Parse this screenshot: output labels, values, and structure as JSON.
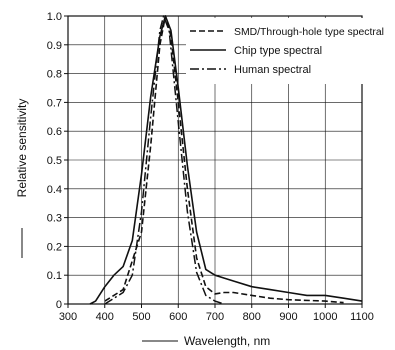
{
  "chart_data": {
    "type": "line",
    "title": "",
    "xlabel": "Wavelength, nm",
    "ylabel": "Relative sensitivity",
    "xlim": [
      300,
      1100
    ],
    "ylim": [
      0,
      1.0
    ],
    "x_ticks": [
      "300",
      "400",
      "500",
      "600",
      "700",
      "800",
      "900",
      "1000",
      "1100"
    ],
    "y_ticks": [
      "0",
      "0.1",
      "0.2",
      "0.3",
      "0.4",
      "0.5",
      "0.6",
      "0.7",
      "0.8",
      "0.9",
      "1.0"
    ],
    "grid": true,
    "legend_position": "top-right",
    "series": [
      {
        "name": "SMD/Through-hole type spectral",
        "dash": "dashed",
        "points": [
          [
            400,
            0.01
          ],
          [
            450,
            0.05
          ],
          [
            500,
            0.25
          ],
          [
            525,
            0.55
          ],
          [
            550,
            0.9
          ],
          [
            565,
            1.0
          ],
          [
            580,
            0.93
          ],
          [
            600,
            0.7
          ],
          [
            625,
            0.4
          ],
          [
            650,
            0.16
          ],
          [
            675,
            0.06
          ],
          [
            700,
            0.035
          ],
          [
            725,
            0.04
          ],
          [
            750,
            0.04
          ],
          [
            800,
            0.03
          ],
          [
            850,
            0.02
          ],
          [
            900,
            0.015
          ],
          [
            1000,
            0.01
          ],
          [
            1050,
            0.005
          ]
        ]
      },
      {
        "name": "Chip type spectral",
        "dash": "solid",
        "points": [
          [
            360,
            0.0
          ],
          [
            375,
            0.01
          ],
          [
            400,
            0.06
          ],
          [
            425,
            0.1
          ],
          [
            450,
            0.13
          ],
          [
            475,
            0.22
          ],
          [
            500,
            0.45
          ],
          [
            525,
            0.72
          ],
          [
            550,
            0.93
          ],
          [
            565,
            1.0
          ],
          [
            580,
            0.95
          ],
          [
            600,
            0.75
          ],
          [
            625,
            0.48
          ],
          [
            650,
            0.25
          ],
          [
            675,
            0.12
          ],
          [
            700,
            0.1
          ],
          [
            725,
            0.09
          ],
          [
            750,
            0.08
          ],
          [
            800,
            0.06
          ],
          [
            850,
            0.05
          ],
          [
            900,
            0.04
          ],
          [
            950,
            0.03
          ],
          [
            1000,
            0.03
          ],
          [
            1050,
            0.02
          ],
          [
            1100,
            0.01
          ]
        ]
      },
      {
        "name": "Human spectral",
        "dash": "dashdot",
        "points": [
          [
            400,
            0.0
          ],
          [
            450,
            0.04
          ],
          [
            475,
            0.1
          ],
          [
            500,
            0.32
          ],
          [
            525,
            0.65
          ],
          [
            550,
            0.95
          ],
          [
            560,
            1.0
          ],
          [
            575,
            0.95
          ],
          [
            600,
            0.63
          ],
          [
            625,
            0.32
          ],
          [
            650,
            0.11
          ],
          [
            675,
            0.03
          ],
          [
            700,
            0.01
          ],
          [
            725,
            0.0
          ]
        ]
      }
    ]
  }
}
